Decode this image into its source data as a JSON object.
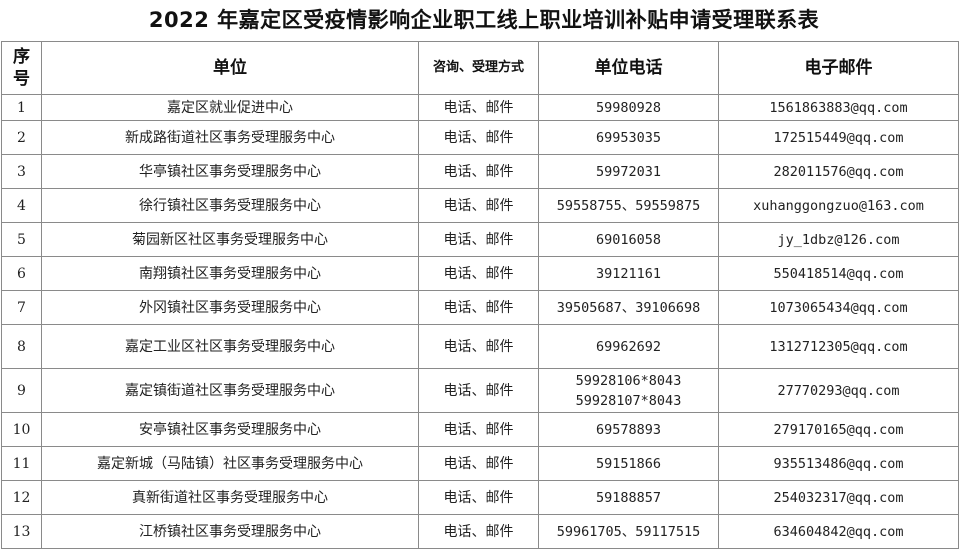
{
  "title": "2022 年嘉定区受疫情影响企业职工线上职业培训补贴申请受理联系表",
  "headers": {
    "seq": "序号",
    "unit": "单位",
    "method": "咨询、受理方式",
    "phone": "单位电话",
    "email": "电子邮件"
  },
  "rows": [
    {
      "seq": "1",
      "unit": "嘉定区就业促进中心",
      "method": "电话、邮件",
      "phone": "59980928",
      "email": "1561863883@qq.com"
    },
    {
      "seq": "2",
      "unit": "新成路街道社区事务受理服务中心",
      "method": "电话、邮件",
      "phone": "69953035",
      "email": "172515449@qq.com"
    },
    {
      "seq": "3",
      "unit": "华亭镇社区事务受理服务中心",
      "method": "电话、邮件",
      "phone": "59972031",
      "email": "282011576@qq.com"
    },
    {
      "seq": "4",
      "unit": "徐行镇社区事务受理服务中心",
      "method": "电话、邮件",
      "phone": "59558755、59559875",
      "email": "xuhanggongzuo@163.com"
    },
    {
      "seq": "5",
      "unit": "菊园新区社区事务受理服务中心",
      "method": "电话、邮件",
      "phone": "69016058",
      "email": "jy_1dbz@126.com"
    },
    {
      "seq": "6",
      "unit": "南翔镇社区事务受理服务中心",
      "method": "电话、邮件",
      "phone": "39121161",
      "email": "550418514@qq.com"
    },
    {
      "seq": "7",
      "unit": "外冈镇社区事务受理服务中心",
      "method": "电话、邮件",
      "phone": "39505687、39106698",
      "email": "1073065434@qq.com"
    },
    {
      "seq": "8",
      "unit": "嘉定工业区社区事务受理服务中心",
      "method": "电话、邮件",
      "phone": "69962692",
      "email": "1312712305@qq.com"
    },
    {
      "seq": "9",
      "unit": "嘉定镇街道社区事务受理服务中心",
      "method": "电话、邮件",
      "phone": "59928106*8043\n59928107*8043",
      "email": "27770293@qq.com"
    },
    {
      "seq": "10",
      "unit": "安亭镇社区事务受理服务中心",
      "method": "电话、邮件",
      "phone": "69578893",
      "email": "279170165@qq.com"
    },
    {
      "seq": "11",
      "unit": "嘉定新城（马陆镇）社区事务受理服务中心",
      "method": "电话、邮件",
      "phone": "59151866",
      "email": "935513486@qq.com"
    },
    {
      "seq": "12",
      "unit": "真新街道社区事务受理服务中心",
      "method": "电话、邮件",
      "phone": "59188857",
      "email": "254032317@qq.com"
    },
    {
      "seq": "13",
      "unit": "江桥镇社区事务受理服务中心",
      "method": "电话、邮件",
      "phone": "59961705、59117515",
      "email": "634604842@qq.com"
    }
  ]
}
